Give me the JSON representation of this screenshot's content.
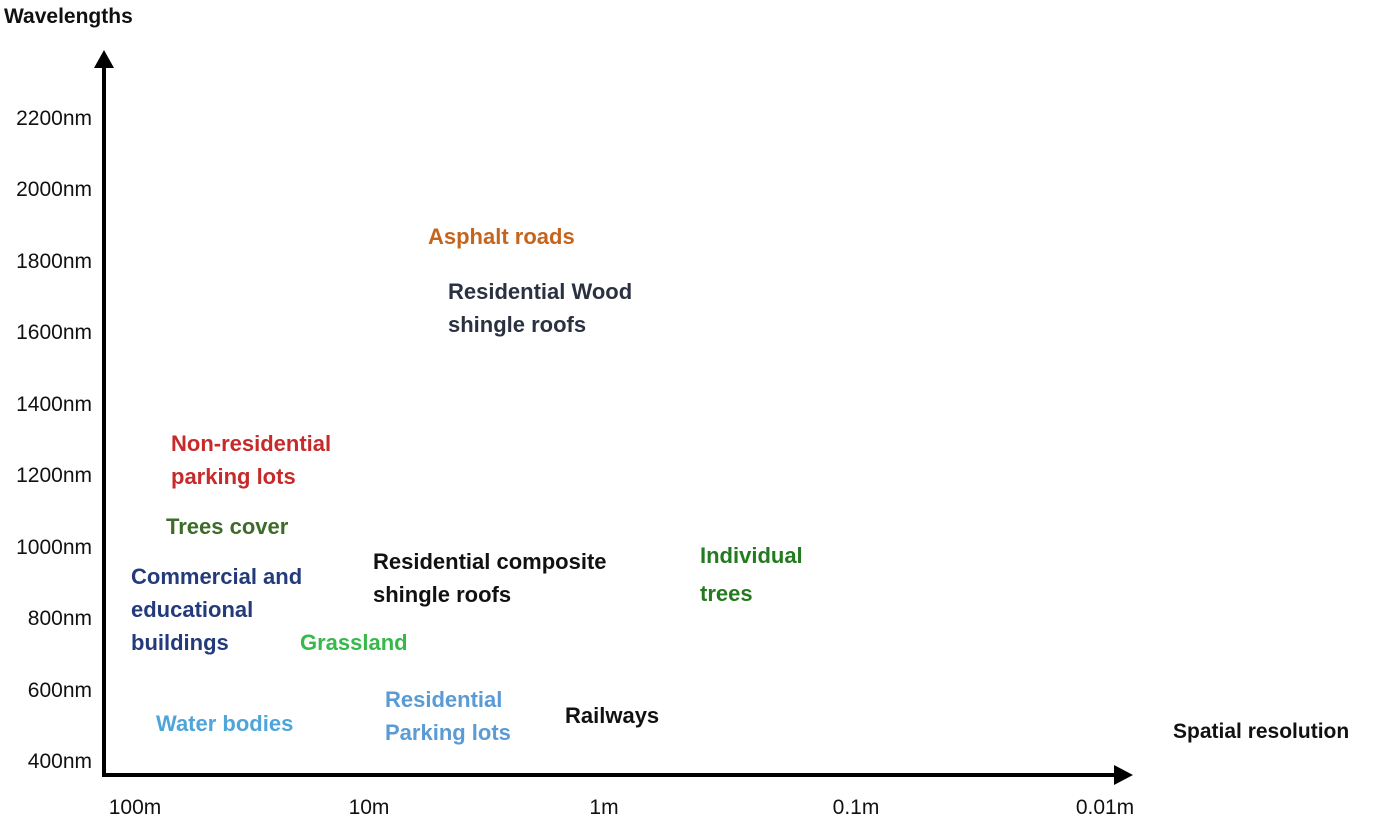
{
  "axes": {
    "y_title": "Wavelengths",
    "x_title": "Spatial resolution",
    "y_ticks": [
      "2200nm",
      "2000nm",
      "1800nm",
      "1600nm",
      "1400nm",
      "1200nm",
      "1000nm",
      "800nm",
      "600nm",
      "400nm"
    ],
    "x_ticks": [
      "100m",
      "10m",
      "1m",
      "0.1m",
      "0.01m"
    ]
  },
  "labels": {
    "asphalt_roads": "Asphalt roads",
    "wood_shingle": "Residential Wood\nshingle roofs",
    "nonres_parking": "Non-residential\nparking lots",
    "trees_cover": "Trees cover",
    "composite_shingle": "Residential composite\nshingle roofs",
    "individual_trees": "Individual\ntrees",
    "commercial": "Commercial and\neducational\nbuildings",
    "grassland": "Grassland",
    "res_parking": "Residential\nParking lots",
    "railways": "Railways",
    "water_bodies": "Water bodies"
  },
  "colors": {
    "asphalt_roads": "#c5651d",
    "wood_shingle": "#2a3241",
    "nonres_parking": "#c62a2a",
    "trees_cover": "#3e6b2a",
    "composite_shingle": "#111111",
    "individual_trees": "#247a1e",
    "commercial": "#243b7b",
    "grassland": "#37b94a",
    "res_parking": "#5b9bd5",
    "railways": "#111111",
    "water_bodies": "#4ea5d9"
  }
}
